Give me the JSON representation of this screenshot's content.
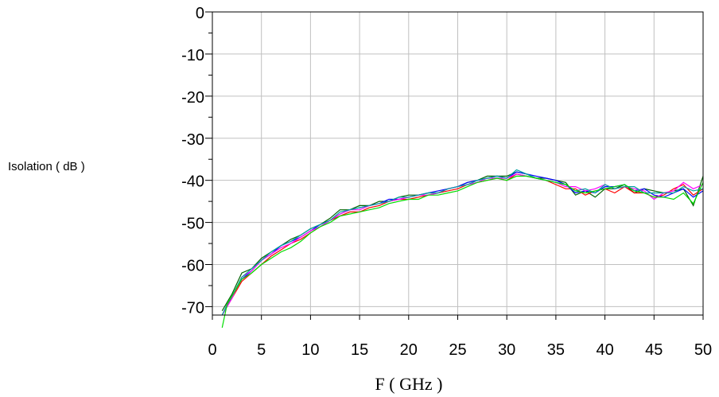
{
  "chart_data": {
    "type": "line",
    "title": "",
    "xlabel": "F ( GHz )",
    "ylabel": "Isolation ( dB )",
    "xlim": [
      0,
      50
    ],
    "ylim": [
      -72,
      0
    ],
    "x_ticks": [
      0,
      5,
      10,
      15,
      20,
      25,
      30,
      35,
      40,
      45,
      50
    ],
    "y_ticks": [
      0,
      -10,
      -20,
      -30,
      -40,
      -50,
      -60,
      -70
    ],
    "x_tick_labels": [
      "0",
      "5",
      "10",
      "15",
      "20",
      "25",
      "30",
      "35",
      "40",
      "45",
      "50"
    ],
    "y_tick_labels": [
      "0",
      "-10",
      "-20",
      "-30",
      "-40",
      "-50",
      "-60",
      "-70"
    ],
    "grid": true,
    "legend": "none",
    "x": [
      1,
      1.5,
      2,
      3,
      4,
      5,
      6,
      7,
      8,
      9,
      10,
      11,
      12,
      13,
      14,
      15,
      16,
      17,
      18,
      19,
      20,
      21,
      22,
      23,
      24,
      25,
      26,
      27,
      28,
      29,
      30,
      31,
      32,
      33,
      34,
      35,
      36,
      37,
      38,
      39,
      40,
      41,
      42,
      43,
      44,
      45,
      46,
      47,
      48,
      49,
      50
    ],
    "series": [
      {
        "color": "#006400",
        "values": [
          -71,
          -69,
          -67,
          -62,
          -61,
          -58.5,
          -57,
          -55.5,
          -54,
          -53,
          -51.5,
          -50.5,
          -49,
          -47,
          -47,
          -46,
          -46,
          -45,
          -45,
          -44,
          -43.5,
          -43.5,
          -43,
          -43,
          -42,
          -41.5,
          -40.5,
          -40,
          -39,
          -39,
          -39,
          -38,
          -38.5,
          -39.5,
          -39.5,
          -40,
          -40.5,
          -43.5,
          -42.5,
          -44,
          -42,
          -42,
          -41,
          -43,
          -42,
          -42.5,
          -43,
          -42.5,
          -42,
          -46,
          -39
        ]
      },
      {
        "color": "#ff0000",
        "values": [
          -72,
          -70,
          -68,
          -64,
          -62,
          -60,
          -58,
          -56.5,
          -55,
          -54,
          -52.5,
          -51,
          -49.5,
          -48.5,
          -47.5,
          -47.5,
          -46.5,
          -46,
          -45,
          -44.5,
          -44.5,
          -44,
          -43.5,
          -43,
          -42.5,
          -42,
          -41,
          -40.5,
          -40,
          -39.5,
          -40,
          -38.5,
          -39,
          -39.5,
          -40,
          -41,
          -42,
          -42,
          -43.5,
          -42.5,
          -42,
          -43,
          -41.5,
          -43,
          -43,
          -44,
          -43.5,
          -42,
          -41,
          -43.5,
          -42
        ]
      },
      {
        "color": "#0000ff",
        "values": [
          -72,
          -70,
          -67.5,
          -63.5,
          -61.5,
          -59,
          -57.5,
          -55.5,
          -54.5,
          -53.5,
          -52,
          -50.5,
          -49.5,
          -48,
          -47,
          -46.5,
          -46,
          -45.5,
          -44.5,
          -44.5,
          -44,
          -43.5,
          -43,
          -42.5,
          -42,
          -41.5,
          -40.5,
          -40,
          -39.5,
          -39,
          -39.5,
          -38,
          -38.5,
          -39,
          -39.5,
          -40,
          -41,
          -43,
          -42.5,
          -43,
          -41.5,
          -41.5,
          -41,
          -42.5,
          -42,
          -43.5,
          -44,
          -43,
          -42,
          -44,
          -42.5
        ]
      },
      {
        "color": "#ff00ff",
        "values": [
          -72,
          -70,
          -68,
          -63,
          -61.5,
          -59,
          -57.5,
          -56,
          -55,
          -53.5,
          -52,
          -51,
          -49.5,
          -48,
          -47,
          -47,
          -46,
          -45.5,
          -45,
          -44.5,
          -44,
          -43.5,
          -43.5,
          -43,
          -42,
          -41.5,
          -41,
          -40.5,
          -39.5,
          -39.5,
          -39.5,
          -38.5,
          -39,
          -39.5,
          -40,
          -40.5,
          -41.5,
          -41.5,
          -42.5,
          -42,
          -41,
          -42,
          -41.5,
          -42,
          -42.5,
          -44.5,
          -43,
          -42.5,
          -40.5,
          -42,
          -41
        ]
      },
      {
        "color": "#00a0a0",
        "values": [
          -72,
          -69.5,
          -67.5,
          -63,
          -61,
          -59,
          -57,
          -55.5,
          -54.5,
          -53,
          -51.5,
          -50.5,
          -49.5,
          -47.5,
          -47,
          -46.5,
          -46,
          -45.5,
          -45,
          -44,
          -44,
          -43.5,
          -43,
          -43,
          -42,
          -41.5,
          -41,
          -40,
          -39.5,
          -39,
          -39.5,
          -37.5,
          -38.5,
          -39.5,
          -40,
          -40.5,
          -41,
          -42.5,
          -42,
          -43,
          -41,
          -42,
          -41.5,
          -41.5,
          -43,
          -43,
          -43,
          -43,
          -41.5,
          -42.5,
          -42
        ]
      },
      {
        "color": "#00dd00",
        "values": [
          -75,
          -69.5,
          -67.5,
          -63.5,
          -62,
          -60,
          -58.5,
          -57,
          -56,
          -54.5,
          -52.5,
          -51,
          -50,
          -48.5,
          -48,
          -47.5,
          -47,
          -46.5,
          -45.5,
          -45,
          -44.5,
          -44.5,
          -43.5,
          -43.5,
          -43,
          -42.5,
          -41.5,
          -40.5,
          -40,
          -39.5,
          -40,
          -39,
          -39,
          -39.5,
          -40,
          -40.5,
          -41,
          -42.5,
          -43,
          -42.5,
          -42,
          -41.5,
          -41,
          -42.5,
          -43,
          -44,
          -44,
          -44.5,
          -43,
          -45.5,
          -40.5
        ]
      }
    ]
  }
}
